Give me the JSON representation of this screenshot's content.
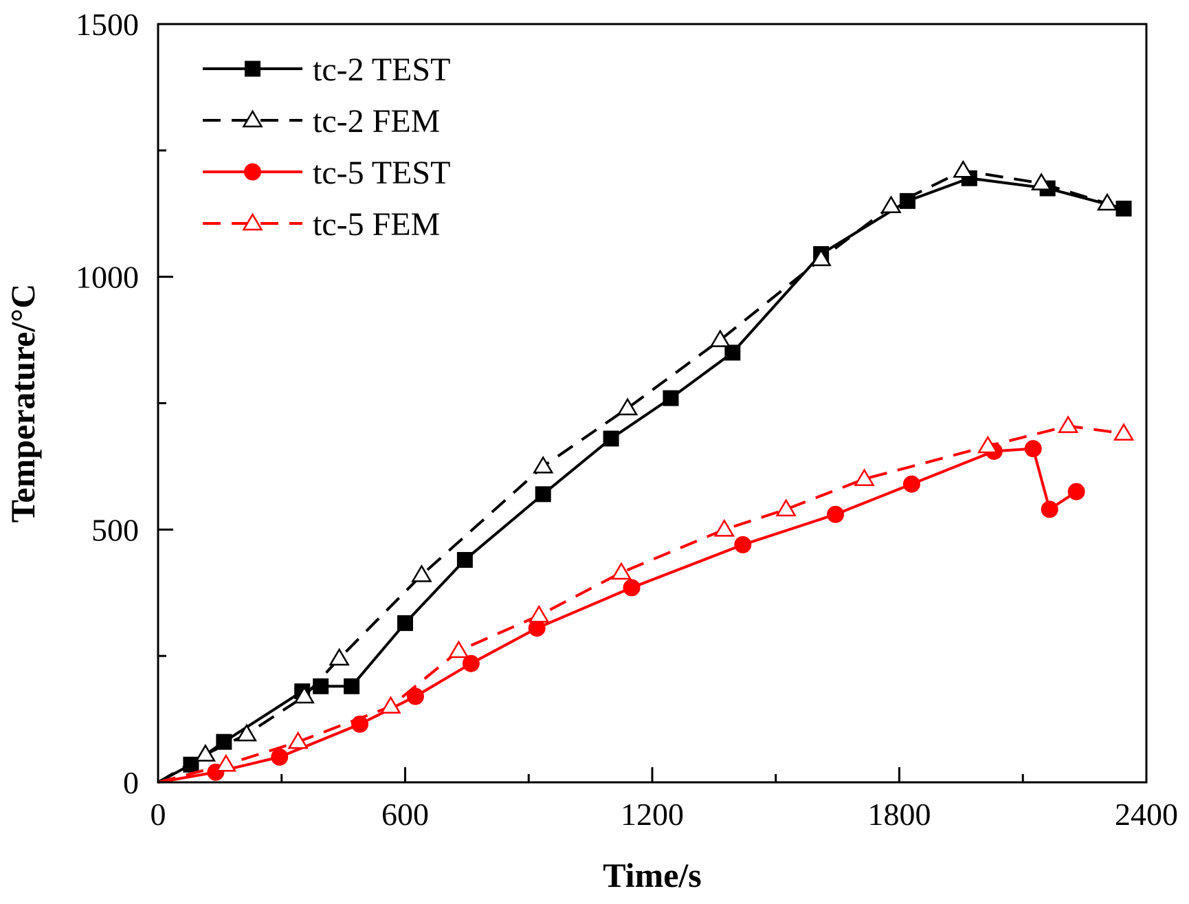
{
  "chart_data": {
    "type": "line",
    "title": "",
    "xlabel": "Time/s",
    "ylabel": "Temperature/°C",
    "xlim": [
      0,
      2400
    ],
    "ylim": [
      0,
      1500
    ],
    "xticks": [
      0,
      600,
      1200,
      1800,
      2400
    ],
    "yticks": [
      0,
      500,
      1000,
      1500
    ],
    "xtick_labels": [
      "0",
      "600",
      "1200",
      "1800",
      "2400"
    ],
    "ytick_labels": [
      "0",
      "500",
      "1000",
      "1500"
    ],
    "grid": false,
    "legend_position": "top-left",
    "series": [
      {
        "name": "tc-2 TEST",
        "color": "#000000",
        "line": "solid",
        "marker": "square-filled",
        "x": [
          0,
          80,
          160,
          350,
          395,
          470,
          600,
          745,
          935,
          1100,
          1245,
          1395,
          1610,
          1820,
          1970,
          2160,
          2345
        ],
        "y": [
          0,
          35,
          80,
          180,
          190,
          190,
          315,
          440,
          570,
          680,
          760,
          850,
          1045,
          1150,
          1195,
          1175,
          1135
        ]
      },
      {
        "name": "tc-2 FEM",
        "color": "#000000",
        "line": "dashed",
        "marker": "triangle-open",
        "x": [
          0,
          115,
          215,
          355,
          440,
          640,
          935,
          1140,
          1365,
          1610,
          1780,
          1955,
          2145,
          2305
        ],
        "y": [
          0,
          55,
          95,
          170,
          245,
          410,
          625,
          740,
          875,
          1035,
          1140,
          1210,
          1185,
          1145
        ]
      },
      {
        "name": "tc-5 TEST",
        "color": "#ff0000",
        "line": "solid",
        "marker": "circle-filled",
        "x": [
          0,
          140,
          295,
          490,
          625,
          760,
          920,
          1150,
          1420,
          1645,
          1830,
          2030,
          2125,
          2165,
          2230
        ],
        "y": [
          0,
          20,
          50,
          115,
          170,
          235,
          305,
          385,
          470,
          530,
          590,
          655,
          660,
          540,
          575
        ]
      },
      {
        "name": "tc-5 FEM",
        "color": "#ff0000",
        "line": "dashed",
        "marker": "triangle-open",
        "x": [
          0,
          165,
          340,
          565,
          730,
          925,
          1125,
          1375,
          1525,
          1715,
          2015,
          2210,
          2345
        ],
        "y": [
          0,
          35,
          80,
          150,
          260,
          330,
          415,
          500,
          540,
          600,
          665,
          705,
          690
        ]
      }
    ]
  }
}
